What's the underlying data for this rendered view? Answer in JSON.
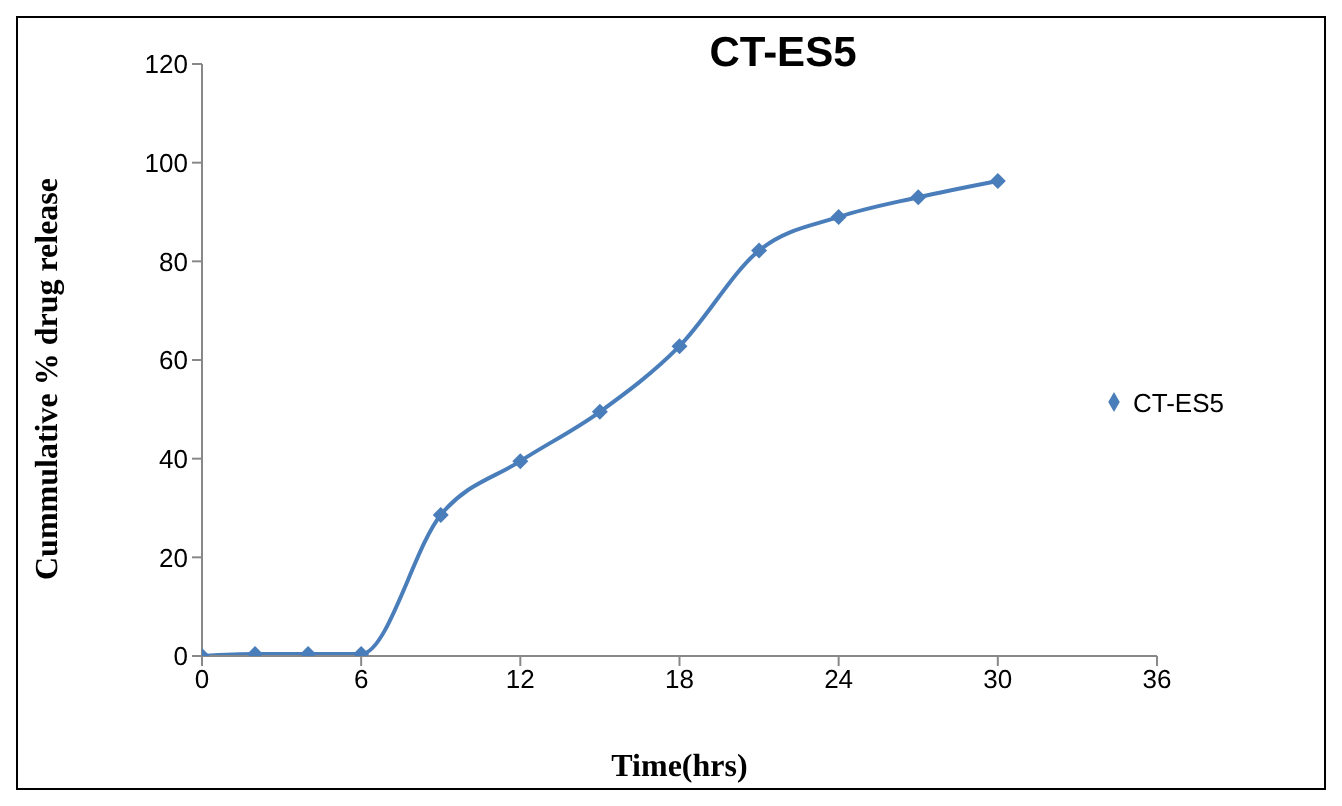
{
  "chart_data": {
    "type": "line",
    "title": "CT-ES5",
    "xlabel": "Time(hrs)",
    "ylabel": "Cummulative % drug release",
    "x": [
      0,
      2,
      4,
      6,
      9,
      12,
      15,
      18,
      21,
      24,
      27,
      30
    ],
    "series": [
      {
        "name": "CT-ES5",
        "color": "#4a7ebb",
        "values": [
          0,
          0.4,
          0.4,
          0.4,
          28.6,
          39.5,
          49.5,
          62.8,
          82.2,
          89,
          93,
          96.3
        ]
      }
    ],
    "xlim": [
      0,
      36
    ],
    "xticks": [
      0,
      6,
      12,
      18,
      24,
      30,
      36
    ],
    "ylim": [
      0,
      120
    ],
    "yticks": [
      0,
      20,
      40,
      60,
      80,
      100,
      120
    ],
    "grid": false,
    "legend": "right",
    "marker": "diamond",
    "line_style": "solid"
  }
}
